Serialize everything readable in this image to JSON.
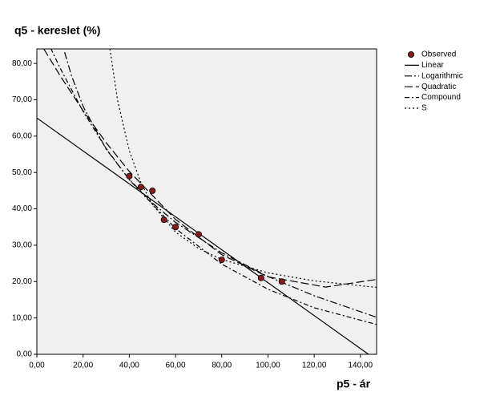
{
  "chart_data": {
    "type": "scatter",
    "y_label": "q5 - kereslet (%)",
    "x_label": "p5 - ár",
    "xlim": [
      0,
      147
    ],
    "ylim": [
      0,
      84
    ],
    "xticks": [
      {
        "value": 0,
        "label": "0,00"
      },
      {
        "value": 20,
        "label": "20,00"
      },
      {
        "value": 40,
        "label": "40,00"
      },
      {
        "value": 60,
        "label": "60,00"
      },
      {
        "value": 80,
        "label": "80,00"
      },
      {
        "value": 100,
        "label": "100,00"
      },
      {
        "value": 120,
        "label": "120,00"
      },
      {
        "value": 140,
        "label": "140,00"
      }
    ],
    "yticks": [
      {
        "value": 0,
        "label": "0,00"
      },
      {
        "value": 10,
        "label": "10,00"
      },
      {
        "value": 20,
        "label": "20,00"
      },
      {
        "value": 30,
        "label": "30,00"
      },
      {
        "value": 40,
        "label": "40,00"
      },
      {
        "value": 50,
        "label": "50,00"
      },
      {
        "value": 60,
        "label": "60,00"
      },
      {
        "value": 70,
        "label": "70,00"
      },
      {
        "value": 80,
        "label": "80,00"
      }
    ],
    "series": [
      {
        "name": "Observed",
        "type": "scatter",
        "color": "#8b1a1a",
        "x": [
          40,
          45,
          50,
          55,
          60,
          70,
          80,
          97,
          106
        ],
        "values": [
          49,
          46,
          45,
          37,
          35,
          33,
          26,
          21,
          20
        ]
      },
      {
        "name": "Linear",
        "type": "line",
        "color": "#000000",
        "dash": "none",
        "x": [
          0,
          143.5
        ],
        "values": [
          65,
          0
        ]
      },
      {
        "name": "Logarithmic",
        "type": "line",
        "color": "#000000",
        "dash": "9,3,2,3",
        "x": [
          12,
          15,
          20,
          30,
          40,
          50,
          60,
          80,
          100,
          120,
          147
        ],
        "values": [
          83.1,
          76.6,
          68.2,
          56.4,
          48.1,
          41.6,
          36.3,
          27.9,
          21.4,
          16.1,
          10.2
        ]
      },
      {
        "name": "Quadratic",
        "type": "line",
        "color": "#000000",
        "dash": "10,4",
        "x": [
          3,
          10,
          20,
          30,
          40,
          60,
          80,
          100,
          125,
          147
        ],
        "values": [
          84.0,
          76.7,
          67.0,
          58.2,
          50.3,
          37.1,
          27.4,
          21.3,
          18.5,
          20.6
        ]
      },
      {
        "name": "Compound",
        "type": "line",
        "color": "#000000",
        "dash": "6,3,2,3",
        "x": [
          6,
          10,
          20,
          30,
          40,
          60,
          80,
          100,
          120,
          147
        ],
        "values": [
          84.2,
          78.8,
          66.8,
          56.6,
          48.0,
          34.6,
          24.8,
          17.9,
          12.8,
          8.2
        ]
      },
      {
        "name": "S",
        "type": "line",
        "color": "#000000",
        "dash": "2,3",
        "x": [
          31.6,
          35,
          40,
          45,
          50,
          60,
          70,
          80,
          100,
          120,
          147
        ],
        "values": [
          84.0,
          69.6,
          56.0,
          47.2,
          41.2,
          33.6,
          29.1,
          26.1,
          22.4,
          20.2,
          18.4
        ]
      }
    ]
  }
}
